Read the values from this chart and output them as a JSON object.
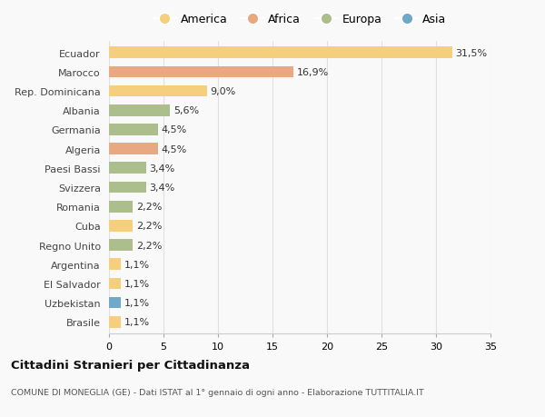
{
  "countries": [
    "Ecuador",
    "Marocco",
    "Rep. Dominicana",
    "Albania",
    "Germania",
    "Algeria",
    "Paesi Bassi",
    "Svizzera",
    "Romania",
    "Cuba",
    "Regno Unito",
    "Argentina",
    "El Salvador",
    "Uzbekistan",
    "Brasile"
  ],
  "values": [
    31.5,
    16.9,
    9.0,
    5.6,
    4.5,
    4.5,
    3.4,
    3.4,
    2.2,
    2.2,
    2.2,
    1.1,
    1.1,
    1.1,
    1.1
  ],
  "labels": [
    "31,5%",
    "16,9%",
    "9,0%",
    "5,6%",
    "4,5%",
    "4,5%",
    "3,4%",
    "3,4%",
    "2,2%",
    "2,2%",
    "2,2%",
    "1,1%",
    "1,1%",
    "1,1%",
    "1,1%"
  ],
  "continents": [
    "America",
    "Africa",
    "America",
    "Europa",
    "Europa",
    "Africa",
    "Europa",
    "Europa",
    "Europa",
    "America",
    "Europa",
    "America",
    "America",
    "Asia",
    "America"
  ],
  "colors": {
    "America": "#F5CE7E",
    "Africa": "#E8A882",
    "Europa": "#ABBE8B",
    "Asia": "#6FA8C8"
  },
  "xlim": [
    0,
    35
  ],
  "xticks": [
    0,
    5,
    10,
    15,
    20,
    25,
    30,
    35
  ],
  "title": "Cittadini Stranieri per Cittadinanza",
  "subtitle": "COMUNE DI MONEGLIA (GE) - Dati ISTAT al 1° gennaio di ogni anno - Elaborazione TUTTITALIA.IT",
  "background_color": "#f9f9f9",
  "grid_color": "#e0e0e0",
  "bar_height": 0.6,
  "label_fontsize": 8,
  "ytick_fontsize": 8,
  "xtick_fontsize": 8
}
